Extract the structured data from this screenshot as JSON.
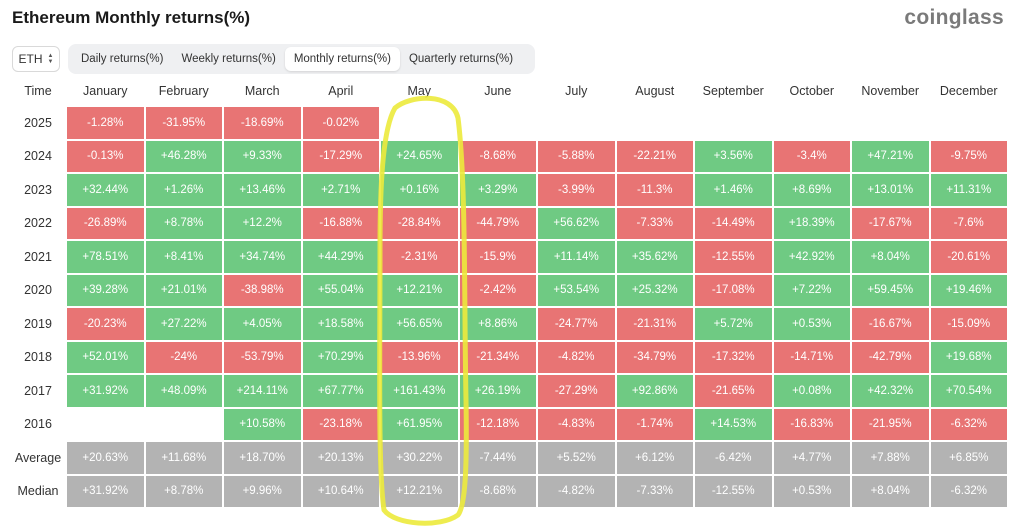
{
  "header": {
    "title": "Ethereum Monthly returns(%)",
    "brand": "coinglass"
  },
  "asset_select": {
    "value": "ETH"
  },
  "tabs": [
    {
      "label": "Daily returns(%)",
      "active": false
    },
    {
      "label": "Weekly returns(%)",
      "active": false
    },
    {
      "label": "Monthly returns(%)",
      "active": true
    },
    {
      "label": "Quarterly returns(%)",
      "active": false
    }
  ],
  "table": {
    "corner": "Time",
    "months": [
      "January",
      "February",
      "March",
      "April",
      "May",
      "June",
      "July",
      "August",
      "September",
      "October",
      "November",
      "December"
    ],
    "rows": [
      {
        "label": "2025",
        "kind": "year",
        "cells": [
          "-1.28%",
          "-31.95%",
          "-18.69%",
          "-0.02%",
          "",
          "",
          "",
          "",
          "",
          "",
          "",
          ""
        ]
      },
      {
        "label": "2024",
        "kind": "year",
        "cells": [
          "-0.13%",
          "+46.28%",
          "+9.33%",
          "-17.29%",
          "+24.65%",
          "-8.68%",
          "-5.88%",
          "-22.21%",
          "+3.56%",
          "-3.4%",
          "+47.21%",
          "-9.75%"
        ]
      },
      {
        "label": "2023",
        "kind": "year",
        "cells": [
          "+32.44%",
          "+1.26%",
          "+13.46%",
          "+2.71%",
          "+0.16%",
          "+3.29%",
          "-3.99%",
          "-11.3%",
          "+1.46%",
          "+8.69%",
          "+13.01%",
          "+11.31%"
        ]
      },
      {
        "label": "2022",
        "kind": "year",
        "cells": [
          "-26.89%",
          "+8.78%",
          "+12.2%",
          "-16.88%",
          "-28.84%",
          "-44.79%",
          "+56.62%",
          "-7.33%",
          "-14.49%",
          "+18.39%",
          "-17.67%",
          "-7.6%"
        ]
      },
      {
        "label": "2021",
        "kind": "year",
        "cells": [
          "+78.51%",
          "+8.41%",
          "+34.74%",
          "+44.29%",
          "-2.31%",
          "-15.9%",
          "+11.14%",
          "+35.62%",
          "-12.55%",
          "+42.92%",
          "+8.04%",
          "-20.61%"
        ]
      },
      {
        "label": "2020",
        "kind": "year",
        "cells": [
          "+39.28%",
          "+21.01%",
          "-38.98%",
          "+55.04%",
          "+12.21%",
          "-2.42%",
          "+53.54%",
          "+25.32%",
          "-17.08%",
          "+7.22%",
          "+59.45%",
          "+19.46%"
        ]
      },
      {
        "label": "2019",
        "kind": "year",
        "cells": [
          "-20.23%",
          "+27.22%",
          "+4.05%",
          "+18.58%",
          "+56.65%",
          "+8.86%",
          "-24.77%",
          "-21.31%",
          "+5.72%",
          "+0.53%",
          "-16.67%",
          "-15.09%"
        ]
      },
      {
        "label": "2018",
        "kind": "year",
        "cells": [
          "+52.01%",
          "-24%",
          "-53.79%",
          "+70.29%",
          "-13.96%",
          "-21.34%",
          "-4.82%",
          "-34.79%",
          "-17.32%",
          "-14.71%",
          "-42.79%",
          "+19.68%"
        ]
      },
      {
        "label": "2017",
        "kind": "year",
        "cells": [
          "+31.92%",
          "+48.09%",
          "+214.11%",
          "+67.77%",
          "+161.43%",
          "+26.19%",
          "-27.29%",
          "+92.86%",
          "-21.65%",
          "+0.08%",
          "+42.32%",
          "+70.54%"
        ]
      },
      {
        "label": "2016",
        "kind": "year",
        "cells": [
          "",
          "",
          "+10.58%",
          "-23.18%",
          "+61.95%",
          "-12.18%",
          "-4.83%",
          "-1.74%",
          "+14.53%",
          "-16.83%",
          "-21.95%",
          "-6.32%"
        ]
      },
      {
        "label": "Average",
        "kind": "stat",
        "cells": [
          "+20.63%",
          "+11.68%",
          "+18.70%",
          "+20.13%",
          "+30.22%",
          "-7.44%",
          "+5.52%",
          "+6.12%",
          "-6.42%",
          "+4.77%",
          "+7.88%",
          "+6.85%"
        ]
      },
      {
        "label": "Median",
        "kind": "stat",
        "cells": [
          "+31.92%",
          "+8.78%",
          "+9.96%",
          "+10.64%",
          "+12.21%",
          "-8.68%",
          "-4.82%",
          "-7.33%",
          "-12.55%",
          "+0.53%",
          "+8.04%",
          "-6.32%"
        ]
      }
    ]
  },
  "colors": {
    "positive": "#6fca83",
    "negative": "#e87474",
    "summary": "#b3b3b3",
    "annotation": "#ecea3c"
  },
  "annotation": {
    "shape": "hand-drawn loop",
    "around_column": "May"
  }
}
